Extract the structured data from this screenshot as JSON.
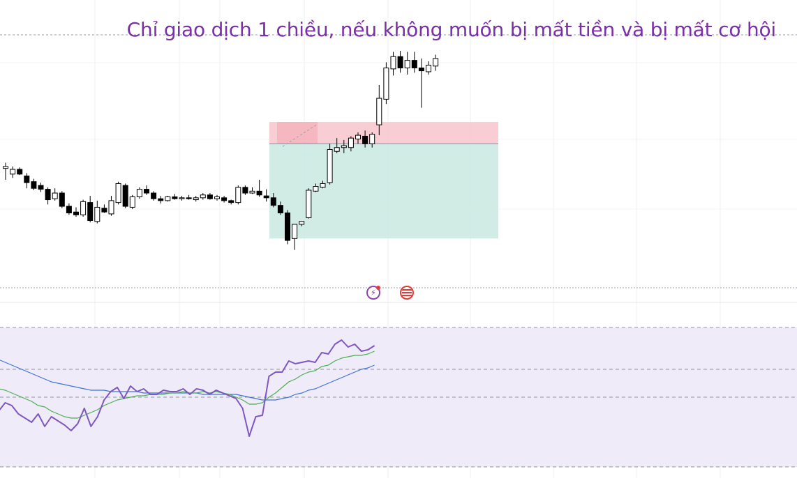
{
  "headline": "Chỉ giao dịch 1 chiều, nếu không muốn bị mất tiền và bị mất cơ hội",
  "colors": {
    "headline": "#7b2fa8",
    "bull_body": "#ffffff",
    "bear_body": "#000000",
    "candle_outline": "#000000",
    "stop_zone": "#f7c6cc",
    "target_zone": "#cfeae4",
    "osc_bg": "#efebf8",
    "osc_main": "#7e57c2",
    "osc_signal": "#4caf50",
    "osc_slow": "#3f74d8"
  },
  "icons": [
    "lightning-icon",
    "us-flag-icon"
  ],
  "chart_data": {
    "type": "candlestick",
    "title": "Chỉ giao dịch 1 chiều, nếu không muốn bị mất tiền và bị mất cơ hội",
    "price_range": [
      0,
      100
    ],
    "candles": [
      [
        62,
        68,
        50,
        64
      ],
      [
        56,
        64,
        52,
        61
      ],
      [
        61,
        63,
        55,
        56
      ],
      [
        54,
        57,
        41,
        47
      ],
      [
        48,
        51,
        39,
        41
      ],
      [
        44,
        47,
        37,
        40
      ],
      [
        40,
        42,
        24,
        29
      ],
      [
        30,
        41,
        28,
        36
      ],
      [
        36,
        38,
        20,
        22
      ],
      [
        22,
        25,
        13,
        15
      ],
      [
        16,
        21,
        11,
        13
      ],
      [
        13,
        29,
        11,
        27
      ],
      [
        26,
        33,
        5,
        7
      ],
      [
        6,
        28,
        4,
        21
      ],
      [
        20,
        24,
        15,
        16
      ],
      [
        14,
        33,
        12,
        28
      ],
      [
        26,
        48,
        24,
        46
      ],
      [
        44,
        46,
        20,
        22
      ],
      [
        21,
        34,
        19,
        32
      ],
      [
        32,
        42,
        30,
        40
      ],
      [
        40,
        44,
        34,
        36
      ],
      [
        36,
        38,
        28,
        30
      ],
      [
        30,
        33,
        25,
        28
      ],
      [
        28,
        33,
        27,
        32
      ],
      [
        32,
        35,
        29,
        30
      ],
      [
        30,
        33,
        28,
        31
      ],
      [
        31,
        34,
        29,
        30
      ],
      [
        29,
        33,
        27,
        31
      ],
      [
        31,
        36,
        29,
        34
      ],
      [
        34,
        36,
        29,
        30
      ],
      [
        30,
        34,
        28,
        32
      ],
      [
        31,
        33,
        26,
        28
      ],
      [
        28,
        29,
        24,
        26
      ],
      [
        26,
        44,
        24,
        42
      ],
      [
        42,
        44,
        34,
        36
      ],
      [
        36,
        42,
        35,
        38
      ],
      [
        38,
        50,
        32,
        34
      ],
      [
        33,
        40,
        27,
        31
      ],
      [
        31,
        36,
        21,
        23
      ],
      [
        23,
        27,
        13,
        15
      ],
      [
        15,
        18,
        -18,
        -14
      ],
      [
        -12,
        2,
        -24,
        3
      ],
      [
        3,
        6,
        1,
        6
      ],
      [
        10,
        41,
        9,
        39
      ],
      [
        38,
        46,
        37,
        43
      ],
      [
        42,
        49,
        41,
        46
      ],
      [
        47,
        88,
        45,
        82
      ],
      [
        80,
        94,
        78,
        84
      ],
      [
        84,
        92,
        78,
        86
      ],
      [
        84,
        96,
        80,
        94
      ],
      [
        93,
        100,
        88,
        97
      ],
      [
        96,
        102,
        84,
        88
      ],
      [
        88,
        100,
        84,
        98
      ],
      [
        108,
        150,
        97,
        136
      ],
      [
        135,
        174,
        130,
        168
      ],
      [
        167,
        185,
        160,
        180
      ],
      [
        180,
        186,
        163,
        168
      ],
      [
        168,
        185,
        161,
        176
      ],
      [
        176,
        185,
        163,
        168
      ],
      [
        168,
        178,
        126,
        165
      ],
      [
        164,
        175,
        161,
        171
      ],
      [
        170,
        182,
        165,
        178
      ]
    ],
    "risk_reward": {
      "entry": 88,
      "stop": 111,
      "target": -12
    },
    "oscillator": {
      "range": [
        0,
        100
      ],
      "levels": [
        70,
        50,
        0
      ],
      "main": [
        40,
        46,
        44,
        38,
        35,
        32,
        38,
        29,
        36,
        33,
        30,
        26,
        31,
        42,
        29,
        36,
        48,
        54,
        57,
        49,
        58,
        54,
        56,
        52,
        52,
        55,
        54,
        54,
        56,
        52,
        56,
        55,
        52,
        55,
        53,
        51,
        49,
        42,
        22,
        36,
        37,
        65,
        68,
        68,
        76,
        74,
        75,
        76,
        75,
        82,
        81,
        88,
        91,
        86,
        88,
        83,
        84,
        87
      ],
      "signal": [
        56,
        55,
        53,
        51,
        49,
        47,
        44,
        43,
        40,
        38,
        36,
        35,
        35,
        37,
        39,
        41,
        44,
        46,
        48,
        49,
        50,
        51,
        51,
        52,
        52,
        52,
        53,
        53,
        54,
        53,
        53,
        54,
        53,
        54,
        53,
        52,
        50,
        48,
        45,
        45,
        46,
        50,
        53,
        57,
        61,
        63,
        66,
        68,
        69,
        72,
        73,
        76,
        78,
        79,
        80,
        80,
        81,
        83
      ],
      "slow": [
        77,
        75,
        73,
        71,
        69,
        67,
        65,
        63,
        61,
        60,
        59,
        58,
        57,
        56,
        55,
        55,
        55,
        54,
        54,
        54,
        54,
        54,
        53,
        53,
        53,
        53,
        53,
        53,
        53,
        53,
        53,
        52,
        52,
        52,
        52,
        52,
        52,
        51,
        50,
        49,
        48,
        48,
        48,
        49,
        50,
        52,
        53,
        55,
        56,
        58,
        60,
        62,
        64,
        66,
        68,
        70,
        71,
        73
      ]
    }
  }
}
